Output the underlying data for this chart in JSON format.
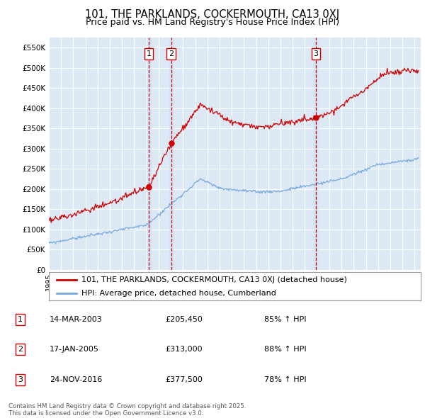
{
  "title": "101, THE PARKLANDS, COCKERMOUTH, CA13 0XJ",
  "subtitle": "Price paid vs. HM Land Registry's House Price Index (HPI)",
  "ylabel_ticks": [
    "£0",
    "£50K",
    "£100K",
    "£150K",
    "£200K",
    "£250K",
    "£300K",
    "£350K",
    "£400K",
    "£450K",
    "£500K",
    "£550K"
  ],
  "ytick_values": [
    0,
    50000,
    100000,
    150000,
    200000,
    250000,
    300000,
    350000,
    400000,
    450000,
    500000,
    550000
  ],
  "ylim": [
    0,
    575000
  ],
  "xlim_start": 1995.0,
  "xlim_end": 2025.5,
  "plot_bg_color": "#dce9f5",
  "grid_color": "#ffffff",
  "legend_label_red": "101, THE PARKLANDS, COCKERMOUTH, CA13 0XJ (detached house)",
  "legend_label_blue": "HPI: Average price, detached house, Cumberland",
  "sales": [
    {
      "num": 1,
      "date": "14-MAR-2003",
      "price": 205450,
      "pct": "85%",
      "x_year": 2003.2
    },
    {
      "num": 2,
      "date": "17-JAN-2005",
      "price": 313000,
      "pct": "88%",
      "x_year": 2005.04
    },
    {
      "num": 3,
      "date": "24-NOV-2016",
      "price": 377500,
      "pct": "78%",
      "x_year": 2016.9
    }
  ],
  "footnote": "Contains HM Land Registry data © Crown copyright and database right 2025.\nThis data is licensed under the Open Government Licence v3.0.",
  "red_color": "#cc0000",
  "blue_color": "#7aaadd",
  "sale_highlight_color": "#cce0f5"
}
